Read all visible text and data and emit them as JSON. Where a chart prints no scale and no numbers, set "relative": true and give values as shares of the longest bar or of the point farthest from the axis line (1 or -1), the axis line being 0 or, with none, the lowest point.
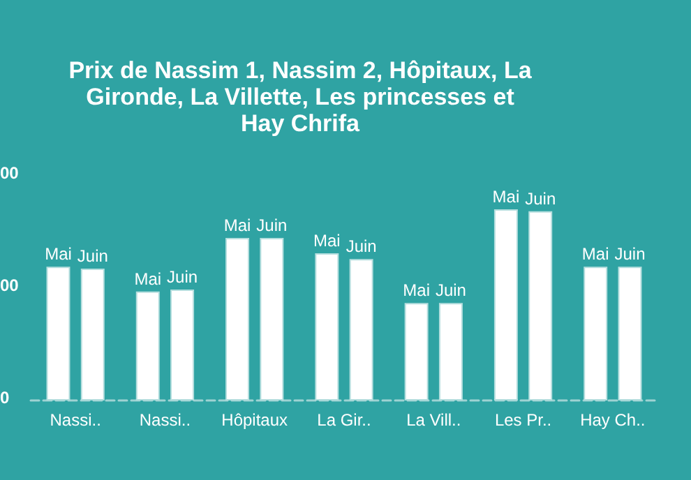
{
  "chart_data": {
    "type": "bar",
    "title": "Prix de Nassim 1, Nassim 2, Hôpitaux, La\nGironde, La Villette, Les princesses et\nHay Chrifa",
    "categories": [
      "Nassi..",
      "Nassi..",
      "Hôpitaux",
      "La Gir..",
      "La Vill..",
      "Les Pr..",
      "Hay Ch.."
    ],
    "series": [
      {
        "name": "Mai",
        "color": "#ffffff",
        "values": [
          0.7,
          0.57,
          0.85,
          0.77,
          0.51,
          1,
          0.7
        ]
      },
      {
        "name": "Juin",
        "color": "#ffffff",
        "values": [
          0.69,
          0.58,
          0.85,
          0.74,
          0.51,
          0.99,
          0.7
        ]
      }
    ],
    "relative": true,
    "annotations": [
      "00",
      "00",
      "0"
    ],
    "legend": false
  }
}
